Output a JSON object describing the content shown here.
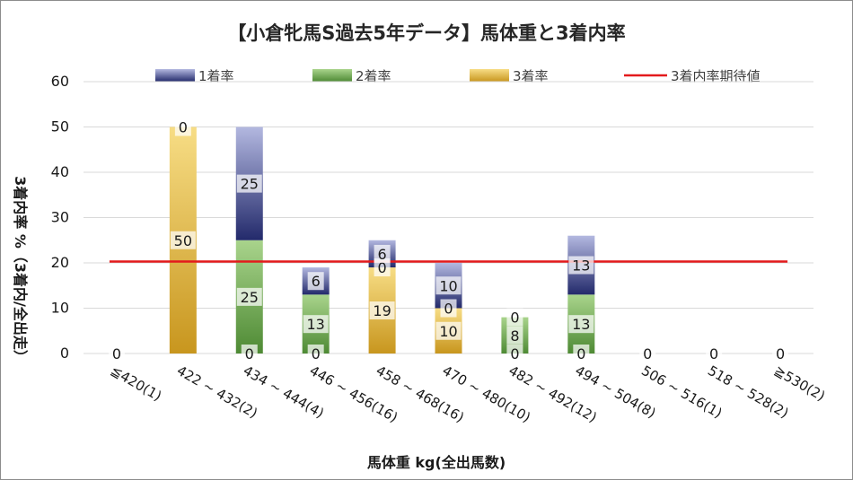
{
  "chart_data": {
    "type": "bar",
    "stacked": true,
    "title": "【小倉牝馬S過去5年データ】馬体重と3着内率",
    "xlabel": "馬体重 kg(全出馬数)",
    "ylabel": "3着内率 %（3着内/全出走）",
    "ylim": [
      0,
      60
    ],
    "yticks": [
      "0",
      "10",
      "20",
      "30",
      "40",
      "50",
      "60"
    ],
    "grid": true,
    "legend_position": "top",
    "categories": [
      "≦420(1)",
      "422 ~ 432(2)",
      "434 ~ 444(4)",
      "446 ~ 456(16)",
      "458 ~ 468(16)",
      "470 ~ 480(10)",
      "482 ~ 492(12)",
      "494 ~ 504(8)",
      "506 ~ 516(1)",
      "518 ~ 528(2)",
      "≧530(2)"
    ],
    "series": [
      {
        "name": "3着率",
        "color": "#c8961e",
        "values": [
          0,
          50,
          0,
          0,
          19,
          10,
          0,
          0,
          0,
          0,
          0
        ],
        "labels": [
          "0",
          "50",
          "0",
          "0",
          "19",
          "10",
          "0",
          "0",
          "0",
          "0",
          "0"
        ]
      },
      {
        "name": "2着率",
        "color": "#4e8a34",
        "values": [
          0,
          0,
          25,
          13,
          0,
          0,
          8,
          13,
          0,
          0,
          0
        ],
        "labels": [
          "",
          "",
          "25",
          "13",
          "0",
          "0",
          "8",
          "13",
          "",
          "",
          ""
        ]
      },
      {
        "name": "1着率",
        "color": "#2e3778",
        "values": [
          0,
          0,
          25,
          6,
          6,
          10,
          0,
          13,
          0,
          0,
          0
        ],
        "labels": [
          "",
          "0",
          "25",
          "6",
          "6",
          "10",
          "0",
          "13",
          "",
          "",
          ""
        ]
      }
    ],
    "reference_line": {
      "name": "3着内率期待値",
      "value": 20.3,
      "color": "#e31a1c"
    }
  }
}
